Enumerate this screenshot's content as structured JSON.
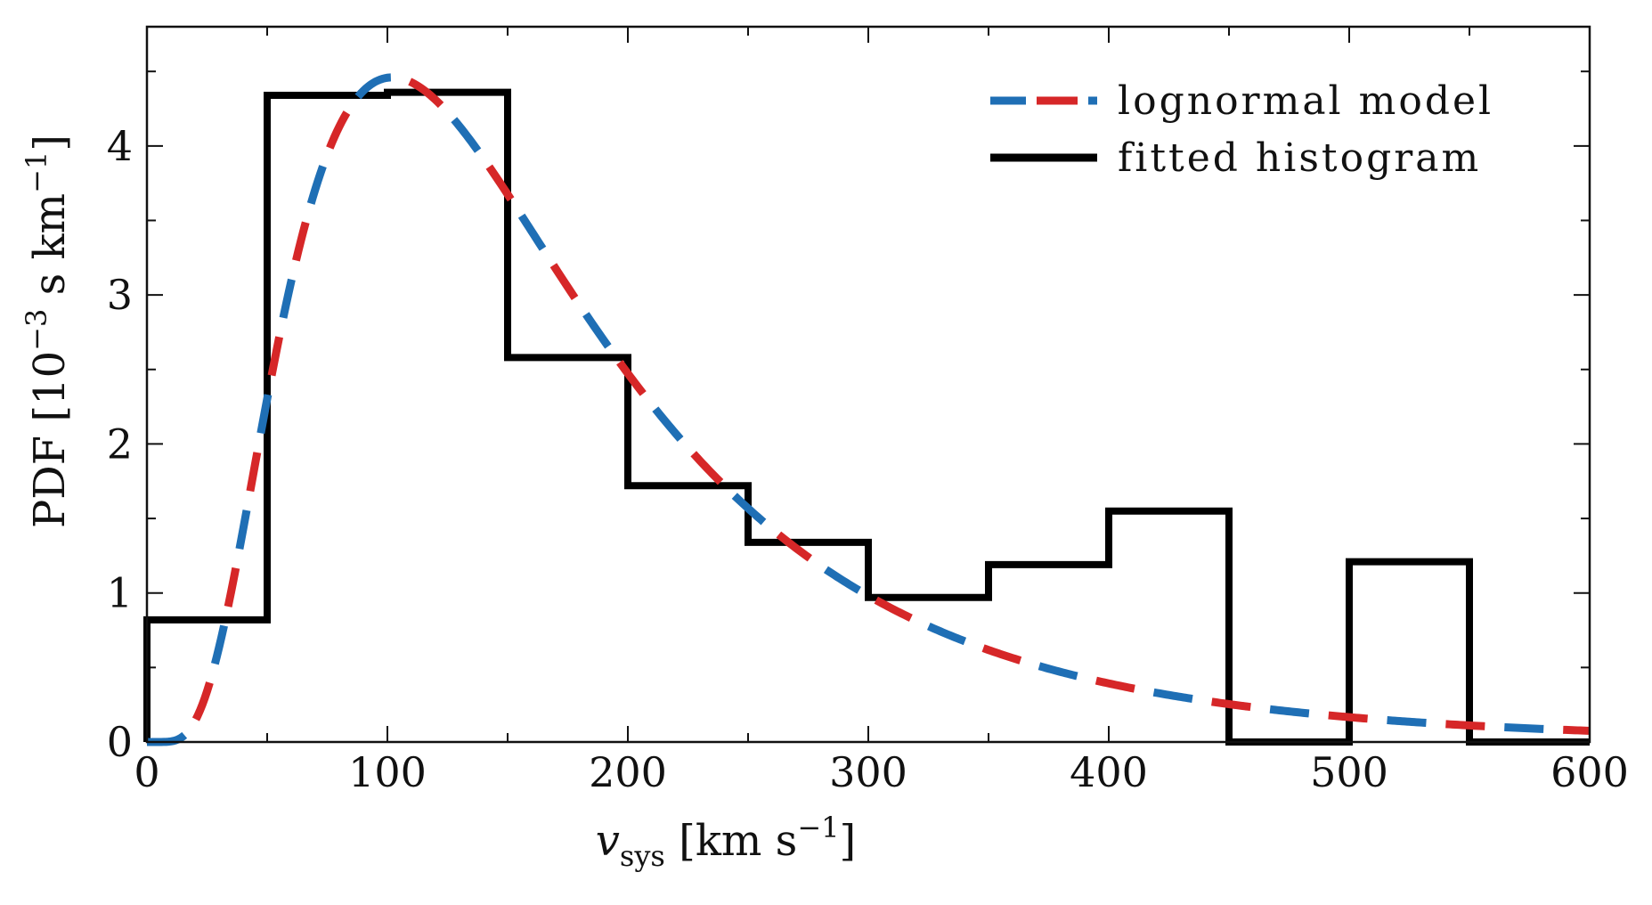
{
  "chart_data": {
    "type": "line",
    "title": "",
    "xlabel": {
      "main": "v",
      "sub": "sys",
      "unit_open": " [km s",
      "unit_exp": "−1",
      "unit_close": "]"
    },
    "ylabel": {
      "prefix": "PDF [10",
      "exp": "−3",
      "suffix": " s km",
      "exp2": "−1",
      "close": "]"
    },
    "xlim": [
      0,
      600
    ],
    "ylim": [
      0,
      4.8
    ],
    "xticks": [
      0,
      100,
      200,
      300,
      400,
      500,
      600
    ],
    "xtick_labels": [
      "0",
      "100",
      "200",
      "300",
      "400",
      "500",
      "600"
    ],
    "yticks": [
      0,
      1,
      2,
      3,
      4
    ],
    "ytick_labels": [
      "0",
      "1",
      "2",
      "3",
      "4"
    ],
    "legend": {
      "position": "top-right",
      "entries": [
        {
          "label": "lognormal model",
          "style": "dashed",
          "colors": [
            "#1f6fb5",
            "#d62728"
          ]
        },
        {
          "label": "fitted histogram",
          "style": "solid",
          "colors": [
            "#000000"
          ]
        }
      ]
    },
    "series": [
      {
        "name": "fitted histogram",
        "kind": "step",
        "color": "#000000",
        "bin_edges": [
          0,
          50,
          100,
          150,
          200,
          250,
          300,
          350,
          400,
          450,
          500,
          550,
          600
        ],
        "values": [
          0.82,
          4.34,
          4.36,
          2.58,
          1.72,
          1.34,
          0.97,
          1.19,
          1.55,
          0.0,
          1.21,
          0.0
        ]
      },
      {
        "name": "lognormal model",
        "kind": "lognormal",
        "colors": [
          "#1f6fb5",
          "#d62728"
        ],
        "peak_x": 102,
        "peak_y": 4.46,
        "sigma": 0.62
      }
    ]
  }
}
